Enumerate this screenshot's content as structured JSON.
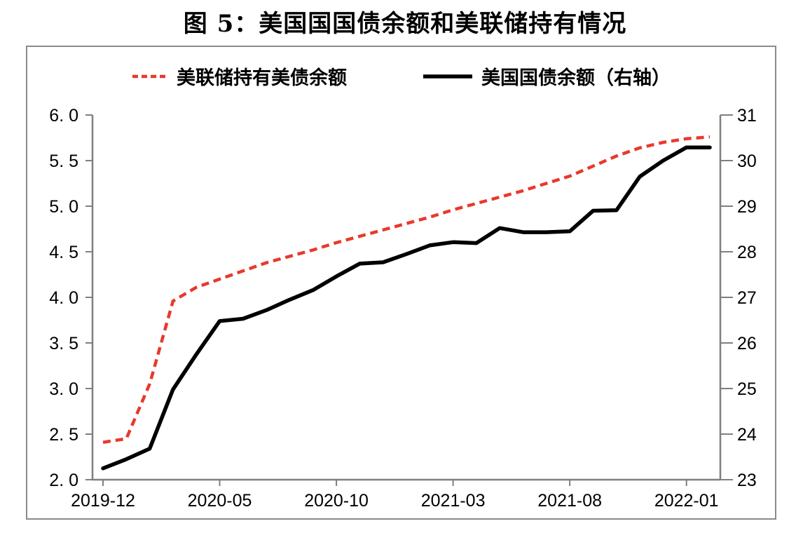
{
  "page": {
    "title": "图 5：美国国国债余额和美联储持有情况"
  },
  "chart_data": {
    "type": "line",
    "title": "图 5：美国国国债余额和美联储持有情况",
    "legend_position": "top",
    "grid": false,
    "axis_color": "#7f7f7f",
    "border_color": "#8a8a8a",
    "x": [
      "2019-12",
      "2020-01",
      "2020-02",
      "2020-03",
      "2020-04",
      "2020-05",
      "2020-06",
      "2020-07",
      "2020-08",
      "2020-09",
      "2020-10",
      "2020-11",
      "2020-12",
      "2021-01",
      "2021-02",
      "2021-03",
      "2021-04",
      "2021-05",
      "2021-06",
      "2021-07",
      "2021-08",
      "2021-09",
      "2021-10",
      "2021-11",
      "2021-12",
      "2022-01",
      "2022-02"
    ],
    "series": [
      {
        "name": "美联储持有美债余额",
        "axis": "left",
        "line_style": "dashed",
        "color": "#e8392c",
        "values": [
          2.41,
          2.45,
          3.05,
          3.96,
          4.11,
          4.2,
          4.29,
          4.38,
          4.45,
          4.52,
          4.6,
          4.67,
          4.74,
          4.81,
          4.88,
          4.96,
          5.03,
          5.1,
          5.17,
          5.25,
          5.33,
          5.44,
          5.55,
          5.64,
          5.7,
          5.74,
          5.76
        ]
      },
      {
        "name": "美国国债余额（右轴）",
        "axis": "right",
        "line_style": "solid",
        "color": "#000000",
        "values": [
          23.25,
          23.45,
          23.68,
          24.98,
          25.75,
          26.48,
          26.53,
          26.72,
          26.95,
          27.16,
          27.46,
          27.74,
          27.77,
          27.95,
          28.14,
          28.21,
          28.19,
          28.52,
          28.43,
          28.43,
          28.45,
          28.9,
          28.91,
          29.65,
          30.0,
          30.29,
          30.29
        ]
      }
    ],
    "left_axis": {
      "min": 2.0,
      "max": 6.0,
      "ticks": [
        {
          "v": 6.0,
          "label": "6. 0"
        },
        {
          "v": 5.5,
          "label": "5. 5"
        },
        {
          "v": 5.0,
          "label": "5. 0"
        },
        {
          "v": 4.5,
          "label": "4. 5"
        },
        {
          "v": 4.0,
          "label": "4. 0"
        },
        {
          "v": 3.5,
          "label": "3. 5"
        },
        {
          "v": 3.0,
          "label": "3. 0"
        },
        {
          "v": 2.5,
          "label": "2. 5"
        },
        {
          "v": 2.0,
          "label": "2. 0"
        }
      ]
    },
    "right_axis": {
      "min": 23,
      "max": 31,
      "ticks": [
        {
          "v": 31,
          "label": "31"
        },
        {
          "v": 30,
          "label": "30"
        },
        {
          "v": 29,
          "label": "29"
        },
        {
          "v": 28,
          "label": "28"
        },
        {
          "v": 27,
          "label": "27"
        },
        {
          "v": 26,
          "label": "26"
        },
        {
          "v": 25,
          "label": "25"
        },
        {
          "v": 24,
          "label": "24"
        },
        {
          "v": 23,
          "label": "23"
        }
      ]
    },
    "x_ticks": [
      {
        "i": 0,
        "label": "2019-12"
      },
      {
        "i": 5,
        "label": "2020-05"
      },
      {
        "i": 10,
        "label": "2020-10"
      },
      {
        "i": 15,
        "label": "2021-03"
      },
      {
        "i": 20,
        "label": "2021-08"
      },
      {
        "i": 25,
        "label": "2022-01"
      }
    ]
  }
}
